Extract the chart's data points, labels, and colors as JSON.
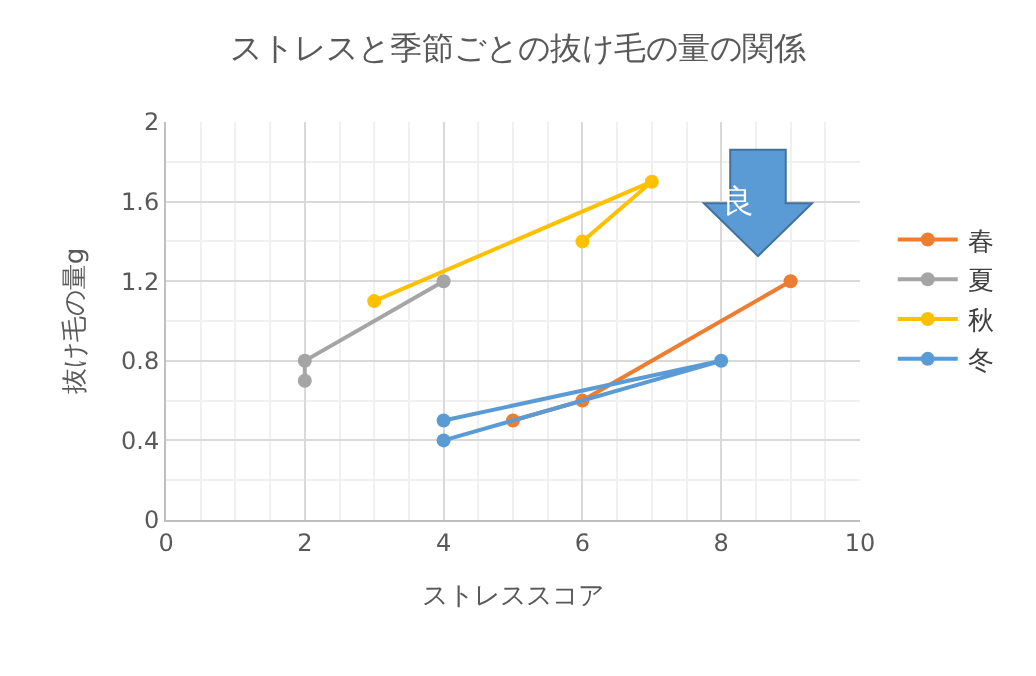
{
  "chart_data": {
    "type": "line",
    "title": "ストレスと季節ごとの抜け毛の量の関係",
    "xlabel": "ストレススコア",
    "ylabel": "抜け毛の量g",
    "marker": "circle",
    "line_style": "solid",
    "grid": true,
    "legend": "right",
    "xlim": [
      0,
      10
    ],
    "xticks": [
      0,
      2,
      4,
      6,
      8,
      10
    ],
    "ylim": [
      0,
      2
    ],
    "yticks": [
      0,
      0.4,
      0.8,
      1.2,
      1.6,
      2
    ],
    "series": [
      {
        "name": "春",
        "color": "#ed7d31",
        "x": [
          5,
          6,
          9
        ],
        "values": [
          0.5,
          0.6,
          1.2
        ]
      },
      {
        "name": "夏",
        "color": "#a5a5a5",
        "x": [
          2,
          2,
          4
        ],
        "values": [
          0.7,
          0.8,
          1.2
        ]
      },
      {
        "name": "秋",
        "color": "#ffc000",
        "x": [
          3,
          7,
          6
        ],
        "values": [
          1.1,
          1.7,
          1.4
        ]
      },
      {
        "name": "冬",
        "color": "#5b9bd5",
        "x": [
          4,
          8,
          4
        ],
        "values": [
          0.4,
          0.8,
          0.5
        ]
      }
    ],
    "annotations": [
      "良"
    ]
  }
}
